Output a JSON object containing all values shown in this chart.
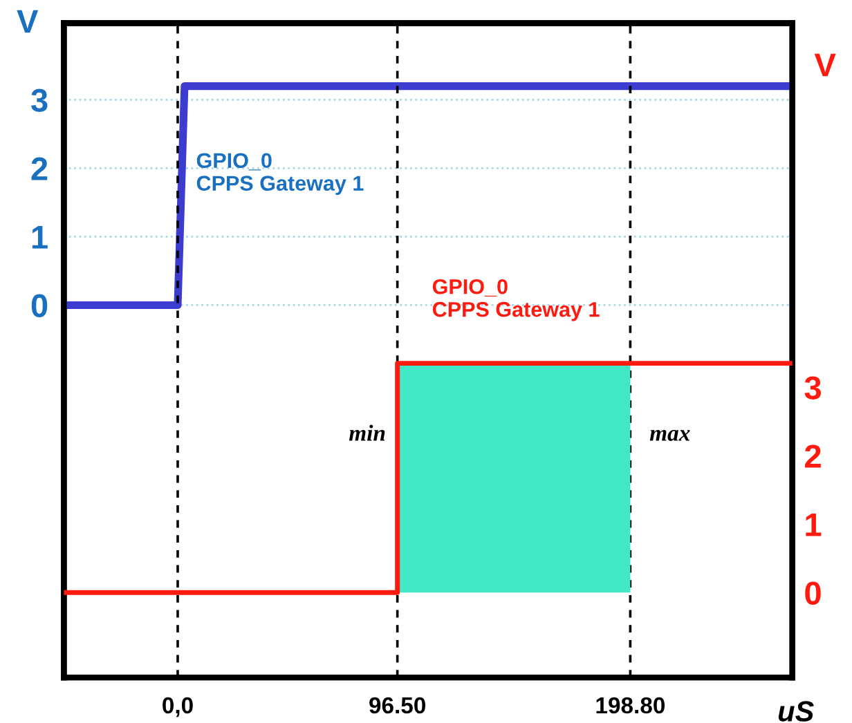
{
  "chart_data": {
    "type": "line",
    "ylabel": "V",
    "y2label": "V",
    "xlabel": "uS",
    "xlim": [
      -50,
      270
    ],
    "xticks": [
      {
        "value": 0,
        "label": "0,0"
      },
      {
        "value": 96.5,
        "label": "96.50"
      },
      {
        "value": 198.8,
        "label": "198.80"
      }
    ],
    "ylim": [
      -5.44,
      4.12
    ],
    "yticks": [
      0,
      1,
      2,
      3
    ],
    "y2lim": [
      -1.24,
      8.32
    ],
    "y2ticks": [
      0,
      1,
      2,
      3
    ],
    "series": [
      {
        "type": "area",
        "axis": "y2",
        "color": "#40e8c8",
        "x": [
          96.5,
          198.8
        ],
        "values": [
          3.35,
          3.35
        ]
      },
      {
        "axis": "y2",
        "name": "GPIO_0\nCPPS Gateway 1",
        "color": "#ff1a10",
        "x": [
          -50,
          96.5,
          96.5,
          270
        ],
        "values": [
          0,
          0,
          3.35,
          3.35
        ]
      },
      {
        "axis": "y",
        "name": "GPIO_0\nCPPS Gateway 1",
        "color": "#3c3cd0",
        "x": [
          -50,
          0,
          3,
          270
        ],
        "values": [
          0,
          0,
          3.2,
          3.2
        ]
      }
    ],
    "ref_lines": [
      {
        "axis": "x",
        "value": 0,
        "color": "#000000",
        "line_style": "dashed"
      },
      {
        "axis": "x",
        "value": 96.5,
        "color": "#000000",
        "line_style": "dashed"
      },
      {
        "axis": "x",
        "value": 198.8,
        "color": "#000000",
        "line_style": "dashed"
      }
    ],
    "annotations": [
      {
        "text": "min",
        "x": 96.5,
        "y": -1.9
      },
      {
        "text": "max",
        "x": 198.8,
        "y": -1.9
      }
    ],
    "grid": "y",
    "legend": false
  }
}
